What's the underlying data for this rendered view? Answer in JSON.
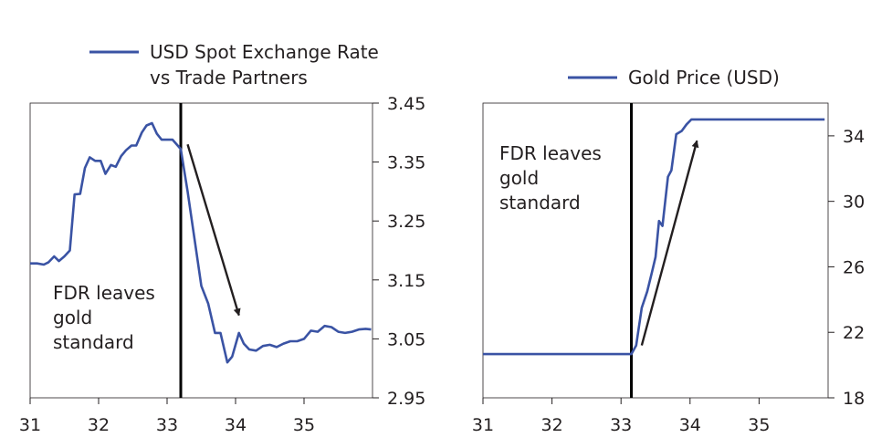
{
  "chart_data": [
    {
      "type": "line",
      "series_name": "USD Spot Exchange Rate vs Trade Partners",
      "legend": [
        "USD Spot Exchange Rate",
        "vs Trade Partners"
      ],
      "annotation": [
        "FDR leaves",
        "gold",
        "standard"
      ],
      "xlim": [
        31,
        36
      ],
      "xticks": [
        "31",
        "32",
        "33",
        "34",
        "35"
      ],
      "ylim": [
        2.95,
        3.45
      ],
      "yticks": [
        "3.45",
        "3.35",
        "3.25",
        "3.15",
        "3.05",
        "2.95"
      ],
      "event_x": 33.2,
      "arrow": {
        "from": [
          33.3,
          3.38
        ],
        "to": [
          34.05,
          3.09
        ]
      },
      "series_color": "#3a53a4",
      "x": [
        31.0,
        31.1,
        31.2,
        31.27,
        31.35,
        31.42,
        31.5,
        31.58,
        31.65,
        31.73,
        31.8,
        31.87,
        31.95,
        32.03,
        32.1,
        32.18,
        32.25,
        32.33,
        32.4,
        32.48,
        32.55,
        32.63,
        32.7,
        32.78,
        32.85,
        32.92,
        33.0,
        33.08,
        33.2,
        33.3,
        33.4,
        33.5,
        33.6,
        33.7,
        33.78,
        33.88,
        33.95,
        34.05,
        34.12,
        34.2,
        34.3,
        34.4,
        34.5,
        34.6,
        34.7,
        34.8,
        34.9,
        35.0,
        35.1,
        35.2,
        35.3,
        35.4,
        35.5,
        35.6,
        35.7,
        35.8,
        35.9,
        35.98
      ],
      "y": [
        3.178,
        3.178,
        3.176,
        3.18,
        3.19,
        3.182,
        3.19,
        3.2,
        3.295,
        3.296,
        3.34,
        3.358,
        3.352,
        3.352,
        3.33,
        3.345,
        3.342,
        3.36,
        3.37,
        3.378,
        3.378,
        3.4,
        3.412,
        3.416,
        3.398,
        3.388,
        3.388,
        3.388,
        3.372,
        3.3,
        3.22,
        3.14,
        3.11,
        3.06,
        3.06,
        3.01,
        3.02,
        3.06,
        3.042,
        3.032,
        3.03,
        3.038,
        3.04,
        3.036,
        3.042,
        3.046,
        3.046,
        3.05,
        3.064,
        3.062,
        3.072,
        3.07,
        3.062,
        3.06,
        3.062,
        3.066,
        3.067,
        3.066
      ]
    },
    {
      "type": "line",
      "series_name": "Gold Price (USD)",
      "legend": [
        "Gold Price (USD)"
      ],
      "annotation": [
        "FDR leaves",
        "gold",
        "standard"
      ],
      "xlim": [
        31,
        36
      ],
      "xticks": [
        "31",
        "32",
        "33",
        "34",
        "35"
      ],
      "ylim": [
        18,
        36
      ],
      "yticks": [
        "34",
        "30",
        "26",
        "22",
        "18"
      ],
      "event_x": 33.15,
      "arrow": {
        "from": [
          33.3,
          21.2
        ],
        "to": [
          34.1,
          33.7
        ]
      },
      "series_color": "#3a53a4",
      "x": [
        31.0,
        31.5,
        32.0,
        32.5,
        33.0,
        33.15,
        33.22,
        33.3,
        33.38,
        33.45,
        33.5,
        33.55,
        33.6,
        33.68,
        33.73,
        33.8,
        33.88,
        33.95,
        34.02,
        34.1,
        34.5,
        35.0,
        35.5,
        35.95
      ],
      "y": [
        20.67,
        20.67,
        20.67,
        20.67,
        20.67,
        20.67,
        21.2,
        23.5,
        24.5,
        25.7,
        26.6,
        28.8,
        28.5,
        31.5,
        31.9,
        34.1,
        34.3,
        34.7,
        35.0,
        35.0,
        35.0,
        35.0,
        35.0,
        35.0
      ]
    }
  ]
}
